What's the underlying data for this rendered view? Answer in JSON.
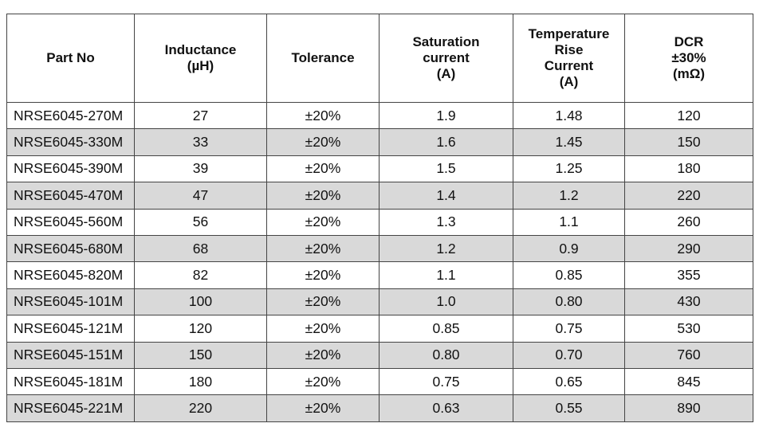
{
  "table": {
    "headers": [
      {
        "key": "part_no",
        "lines": [
          "Part No"
        ]
      },
      {
        "key": "inductance",
        "lines": [
          "Inductance",
          "(µH)"
        ]
      },
      {
        "key": "tolerance",
        "lines": [
          "Tolerance"
        ]
      },
      {
        "key": "saturation_current",
        "lines": [
          "Saturation",
          "current",
          "(A)"
        ]
      },
      {
        "key": "temperature_rise_current",
        "lines": [
          "Temperature Rise",
          "Current",
          "(A)"
        ]
      },
      {
        "key": "dcr",
        "lines": [
          "DCR",
          "±30%",
          "(mΩ)"
        ]
      }
    ],
    "rows": [
      [
        "NRSE6045-270M",
        "27",
        "±20%",
        "1.9",
        "1.48",
        "120"
      ],
      [
        "NRSE6045-330M",
        "33",
        "±20%",
        "1.6",
        "1.45",
        "150"
      ],
      [
        "NRSE6045-390M",
        "39",
        "±20%",
        "1.5",
        "1.25",
        "180"
      ],
      [
        "NRSE6045-470M",
        "47",
        "±20%",
        "1.4",
        "1.2",
        "220"
      ],
      [
        "NRSE6045-560M",
        "56",
        "±20%",
        "1.3",
        "1.1",
        "260"
      ],
      [
        "NRSE6045-680M",
        "68",
        "±20%",
        "1.2",
        "0.9",
        "290"
      ],
      [
        "NRSE6045-820M",
        "82",
        "±20%",
        "1.1",
        "0.85",
        "355"
      ],
      [
        "NRSE6045-101M",
        "100",
        "±20%",
        "1.0",
        "0.80",
        "430"
      ],
      [
        "NRSE6045-121M",
        "120",
        "±20%",
        "0.85",
        "0.75",
        "530"
      ],
      [
        "NRSE6045-151M",
        "150",
        "±20%",
        "0.80",
        "0.70",
        "760"
      ],
      [
        "NRSE6045-181M",
        "180",
        "±20%",
        "0.75",
        "0.65",
        "845"
      ],
      [
        "NRSE6045-221M",
        "220",
        "±20%",
        "0.63",
        "0.55",
        "890"
      ]
    ],
    "colors": {
      "shaded_row": "#d9d9d9",
      "border": "#444444"
    }
  }
}
